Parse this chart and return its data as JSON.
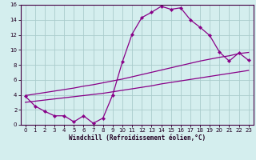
{
  "xlabel": "Windchill (Refroidissement éolien,°C)",
  "x": [
    0,
    1,
    2,
    3,
    4,
    5,
    6,
    7,
    8,
    9,
    10,
    11,
    12,
    13,
    14,
    15,
    16,
    17,
    18,
    19,
    20,
    21,
    22,
    23
  ],
  "line_main": [
    3.8,
    2.5,
    1.8,
    1.2,
    1.2,
    0.4,
    1.2,
    0.2,
    0.9,
    4.0,
    8.4,
    12.1,
    14.3,
    15.0,
    15.8,
    15.4,
    15.6,
    14.0,
    13.0,
    11.9,
    9.7,
    8.5,
    9.6,
    8.6
  ],
  "line_upper": [
    3.9,
    4.1,
    4.3,
    4.5,
    4.7,
    4.9,
    5.15,
    5.35,
    5.6,
    5.85,
    6.1,
    6.4,
    6.7,
    7.0,
    7.3,
    7.6,
    7.9,
    8.2,
    8.5,
    8.75,
    9.0,
    9.2,
    9.5,
    9.65
  ],
  "line_lower": [
    3.0,
    3.15,
    3.3,
    3.45,
    3.6,
    3.75,
    3.9,
    4.05,
    4.2,
    4.4,
    4.6,
    4.8,
    5.0,
    5.2,
    5.45,
    5.65,
    5.85,
    6.05,
    6.25,
    6.45,
    6.65,
    6.85,
    7.05,
    7.25
  ],
  "color": "#880088",
  "bg_color": "#d4eeee",
  "grid_color": "#aacccc",
  "xlim": [
    -0.5,
    23.5
  ],
  "ylim": [
    0,
    16
  ],
  "yticks": [
    0,
    2,
    4,
    6,
    8,
    10,
    12,
    14,
    16
  ],
  "xticks": [
    0,
    1,
    2,
    3,
    4,
    5,
    6,
    7,
    8,
    9,
    10,
    11,
    12,
    13,
    14,
    15,
    16,
    17,
    18,
    19,
    20,
    21,
    22,
    23
  ]
}
